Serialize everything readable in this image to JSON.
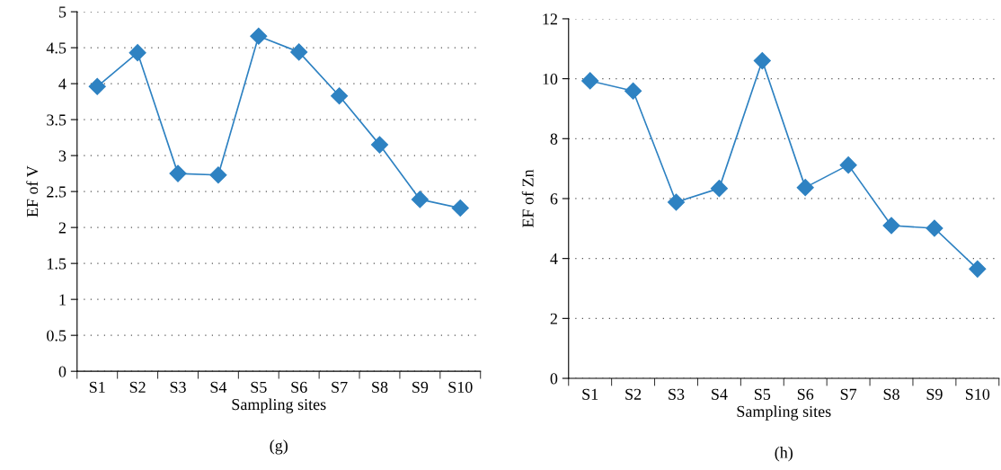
{
  "chart_data": [
    {
      "type": "line",
      "xlabel": "Sampling sites",
      "ylabel": "EF of V",
      "categories": [
        "S1",
        "S2",
        "S3",
        "S4",
        "S5",
        "S6",
        "S7",
        "S8",
        "S9",
        "S10"
      ],
      "series": [
        {
          "color": "#2e82c2",
          "values": [
            3.96,
            4.43,
            2.75,
            2.73,
            4.66,
            4.44,
            3.83,
            3.15,
            2.39,
            2.27
          ]
        }
      ],
      "ylim": [
        0,
        5
      ],
      "yticks": [
        0,
        0.5,
        1,
        1.5,
        2,
        2.5,
        3,
        3.5,
        4,
        4.5,
        5
      ],
      "grid": "y",
      "marker": "diamond",
      "line_style": "solid",
      "legend": false,
      "annotations": [
        "(g)"
      ]
    },
    {
      "type": "line",
      "xlabel": "Sampling sites",
      "ylabel": "EF of Zn",
      "categories": [
        "S1",
        "S2",
        "S3",
        "S4",
        "S5",
        "S6",
        "S7",
        "S8",
        "S9",
        "S10"
      ],
      "series": [
        {
          "color": "#2e82c2",
          "values": [
            9.93,
            9.59,
            5.88,
            6.34,
            10.6,
            6.37,
            7.12,
            5.1,
            5.01,
            3.65
          ]
        }
      ],
      "ylim": [
        0,
        12
      ],
      "yticks": [
        0,
        2,
        4,
        6,
        8,
        10,
        12
      ],
      "grid": "y",
      "marker": "diamond",
      "line_style": "solid",
      "legend": false,
      "annotations": [
        "(h)"
      ]
    }
  ]
}
